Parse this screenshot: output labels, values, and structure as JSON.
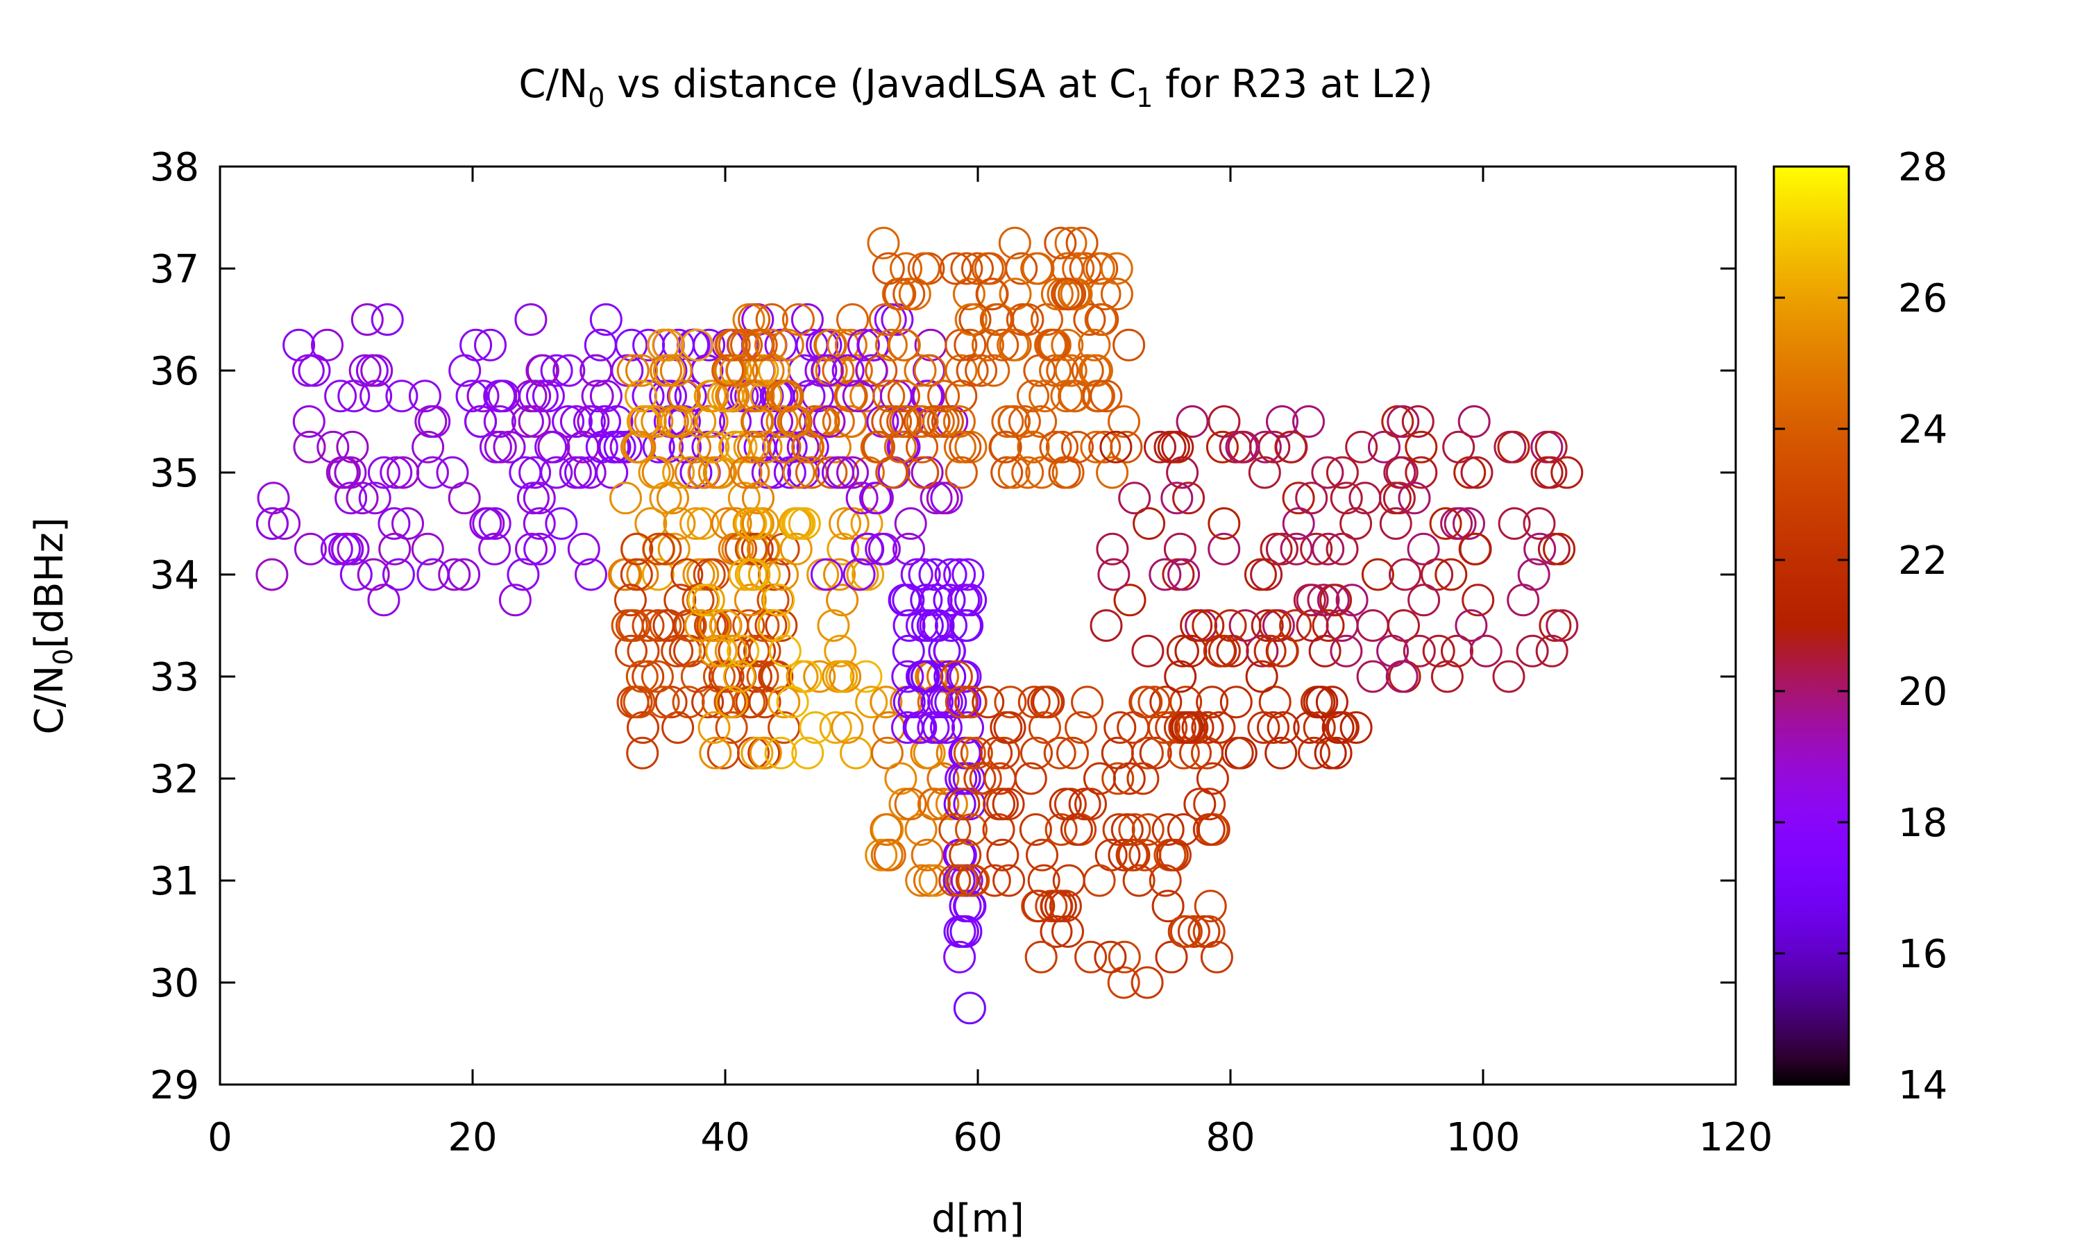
{
  "chart_data": {
    "type": "scatter",
    "title": {
      "pre": "C/N",
      "pre_sub": "0",
      "mid": " vs distance (JavadLSA at C",
      "mid_sub": "1",
      "post": " for R23 at L2)"
    },
    "xlabel": "d[m]",
    "ylabel": {
      "main": "C/N",
      "sub": "0",
      "post": "[dBHz]"
    },
    "xlim": [
      0,
      120
    ],
    "ylim": [
      29,
      38
    ],
    "xticks": [
      0,
      20,
      40,
      60,
      80,
      100,
      120
    ],
    "yticks": [
      29,
      30,
      31,
      32,
      33,
      34,
      35,
      36,
      37,
      38
    ],
    "colorbar": {
      "min": 14,
      "max": 28,
      "ticks": [
        14,
        16,
        18,
        20,
        22,
        24,
        26,
        28
      ],
      "palette": "gnuplot pm3d (black-purple-red-orange-yellow)"
    },
    "marker": "open circle",
    "grid": false,
    "clusters": [
      {
        "x_range": [
          4,
          30
        ],
        "y_range": [
          33.8,
          36.5
        ],
        "color_value": 18.5,
        "count": 110
      },
      {
        "x_range": [
          30,
          48
        ],
        "y_range": [
          35.0,
          36.5
        ],
        "color_value": 18.0,
        "count": 80
      },
      {
        "x_range": [
          32,
          44
        ],
        "y_range": [
          34.0,
          36.3
        ],
        "color_value": 25.5,
        "count": 80
      },
      {
        "x_range": [
          32,
          45
        ],
        "y_range": [
          32.2,
          34.3
        ],
        "color_value": 23.0,
        "count": 80
      },
      {
        "x_range": [
          38,
          52
        ],
        "y_range": [
          32.2,
          34.7
        ],
        "color_value": 26.0,
        "count": 60
      },
      {
        "x_range": [
          40,
          52
        ],
        "y_range": [
          35.0,
          36.5
        ],
        "color_value": 24.5,
        "count": 60
      },
      {
        "x_range": [
          48,
          58
        ],
        "y_range": [
          34.0,
          36.5
        ],
        "color_value": 18.5,
        "count": 40
      },
      {
        "x_range": [
          52,
          58
        ],
        "y_range": [
          31.0,
          33.0
        ],
        "color_value": 25.0,
        "count": 30
      },
      {
        "x_range": [
          54,
          58
        ],
        "y_range": [
          32.5,
          34.0
        ],
        "color_value": 17.5,
        "count": 40
      },
      {
        "x_range": [
          58.5,
          59.5
        ],
        "y_range": [
          29.8,
          34.0
        ],
        "color_value": 17.5,
        "count": 35
      },
      {
        "x_range": [
          52,
          72
        ],
        "y_range": [
          35.0,
          37.2
        ],
        "color_value": 24.0,
        "count": 140
      },
      {
        "x_range": [
          58,
          60
        ],
        "y_range": [
          30.8,
          33.0
        ],
        "color_value": 23.0,
        "count": 15
      },
      {
        "x_range": [
          60,
          79
        ],
        "y_range": [
          30.0,
          32.8
        ],
        "color_value": 22.5,
        "count": 110
      },
      {
        "x_range": [
          70,
          107
        ],
        "y_range": [
          33.0,
          35.5
        ],
        "color_value": 20.5,
        "count": 130
      },
      {
        "x_range": [
          76,
          90
        ],
        "y_range": [
          32.2,
          33.5
        ],
        "color_value": 21.5,
        "count": 40
      }
    ]
  }
}
